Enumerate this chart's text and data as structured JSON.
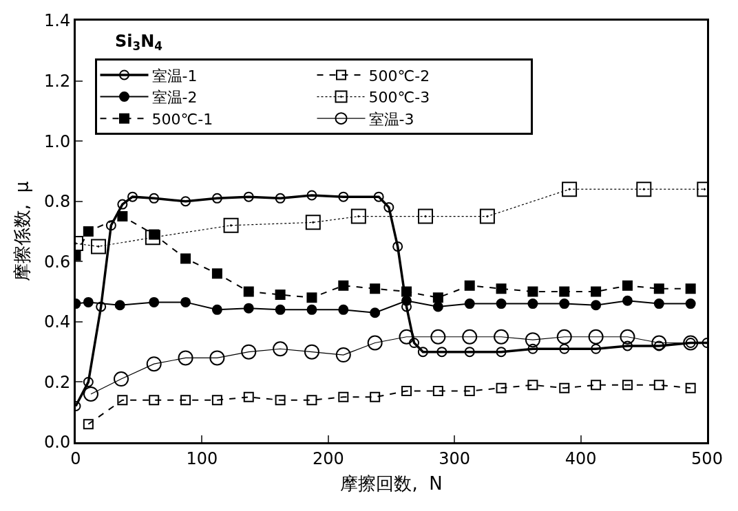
{
  "chart_data": {
    "type": "line",
    "xlabel": "摩擦回数,  N",
    "ylabel": "摩擦係数,  μ",
    "annotations": [
      "Si$_{3}$N$_{4}$"
    ],
    "xlim": [
      0,
      500
    ],
    "xticks": [
      0,
      100,
      200,
      300,
      400,
      500
    ],
    "ylim": [
      0,
      1.4
    ],
    "yticks": [
      {
        "value": 0,
        "label": "0.0"
      },
      0.2,
      0.4,
      0.6,
      0.8,
      {
        "value": 1,
        "label": "1.0"
      },
      1.2,
      1.4
    ],
    "legend": "top left",
    "series": [
      {
        "name": "室温-1",
        "color": "#000000",
        "marker": "circle-open",
        "line_style": "solid",
        "x": [
          0,
          10,
          20,
          28,
          37,
          45,
          62,
          87,
          112,
          137,
          162,
          187,
          212,
          240,
          248,
          255,
          262,
          268,
          275,
          290,
          312,
          337,
          362,
          387,
          412,
          437,
          462,
          487,
          500
        ],
        "values": [
          0.12,
          0.2,
          0.45,
          0.72,
          0.79,
          0.815,
          0.81,
          0.8,
          0.81,
          0.815,
          0.81,
          0.82,
          0.815,
          0.815,
          0.78,
          0.65,
          0.45,
          0.33,
          0.3,
          0.3,
          0.3,
          0.3,
          0.31,
          0.31,
          0.31,
          0.32,
          0.32,
          0.33,
          0.33
        ]
      },
      {
        "name": "500℃-2",
        "color": "#000000",
        "marker": "square-open",
        "line_style": "dashed",
        "x": [
          10,
          37,
          62,
          87,
          112,
          137,
          162,
          187,
          212,
          237,
          262,
          287,
          312,
          337,
          362,
          387,
          412,
          437,
          462,
          487
        ],
        "values": [
          0.06,
          0.14,
          0.14,
          0.14,
          0.14,
          0.15,
          0.14,
          0.14,
          0.15,
          0.15,
          0.17,
          0.17,
          0.17,
          0.18,
          0.19,
          0.18,
          0.19,
          0.19,
          0.19,
          0.18
        ]
      },
      {
        "name": "室温-2",
        "color": "#000000",
        "marker": "circle",
        "line_style": "solid",
        "x": [
          0,
          10,
          35,
          62,
          87,
          112,
          137,
          162,
          187,
          212,
          237,
          262,
          287,
          312,
          337,
          362,
          387,
          412,
          437,
          462,
          487
        ],
        "values": [
          0.46,
          0.465,
          0.455,
          0.465,
          0.465,
          0.44,
          0.445,
          0.44,
          0.44,
          0.44,
          0.43,
          0.47,
          0.45,
          0.46,
          0.46,
          0.46,
          0.46,
          0.455,
          0.47,
          0.46,
          0.46
        ]
      },
      {
        "name": "500℃-3",
        "color": "#000000",
        "marker": "square-open-dot",
        "line_style": "dotted",
        "x": [
          0,
          18,
          61,
          123,
          188,
          224,
          277,
          326,
          391,
          450,
          498
        ],
        "values": [
          0.66,
          0.65,
          0.68,
          0.72,
          0.73,
          0.75,
          0.75,
          0.75,
          0.84,
          0.84,
          0.84
        ]
      },
      {
        "name": "500℃-1",
        "color": "#000000",
        "marker": "square",
        "line_style": "dashed",
        "x": [
          0,
          10,
          37,
          62,
          87,
          112,
          137,
          162,
          187,
          212,
          237,
          262,
          287,
          312,
          337,
          362,
          387,
          412,
          437,
          462,
          487
        ],
        "values": [
          0.62,
          0.7,
          0.75,
          0.69,
          0.61,
          0.56,
          0.5,
          0.49,
          0.48,
          0.52,
          0.51,
          0.5,
          0.48,
          0.52,
          0.51,
          0.5,
          0.5,
          0.5,
          0.52,
          0.51,
          0.51
        ]
      },
      {
        "name": "室温-3",
        "color": "#000000",
        "marker": "circle-open",
        "line_style": "solid",
        "x": [
          12,
          36,
          62,
          87,
          112,
          137,
          162,
          187,
          212,
          237,
          262,
          287,
          312,
          337,
          362,
          387,
          412,
          437,
          462,
          487
        ],
        "values": [
          0.16,
          0.21,
          0.26,
          0.28,
          0.28,
          0.3,
          0.31,
          0.3,
          0.29,
          0.33,
          0.35,
          0.35,
          0.35,
          0.35,
          0.34,
          0.35,
          0.35,
          0.35,
          0.33,
          0.33
        ]
      }
    ]
  }
}
